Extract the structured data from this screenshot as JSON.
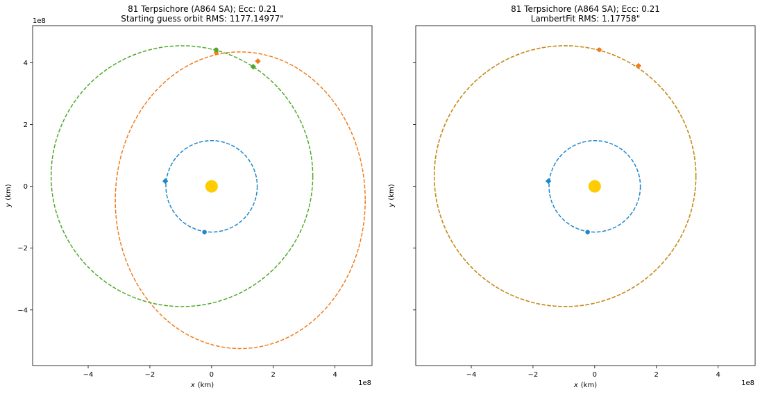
{
  "chart_data": [
    {
      "type": "scatter",
      "title_line1": "81 Terpsichore (A864 SA); Ecc: 0.21",
      "title_line2": "Starting guess orbit RMS: 1177.14977\"",
      "xlabel": "x",
      "xlabel_unit": "(km)",
      "ylabel": "y",
      "ylabel_unit": "(km)",
      "x_offset_label": "1e8",
      "y_offset_label": "1e8",
      "xlim": [
        -5.8,
        5.2
      ],
      "ylim": [
        -5.8,
        5.2
      ],
      "x_ticks": [
        -4,
        -2,
        0,
        2,
        4
      ],
      "x_tick_labels": [
        "−4",
        "−2",
        "0",
        "2",
        "4"
      ],
      "y_ticks": [
        -4,
        -2,
        0,
        2,
        4
      ],
      "y_tick_labels": [
        "−4",
        "−2",
        "0",
        "2",
        "4"
      ],
      "show_y_tick_labels": true,
      "grid": false,
      "sun": {
        "x": 0,
        "y": 0,
        "color": "#ffcc00"
      },
      "orbits": [
        {
          "center": [
            0,
            0
          ],
          "a": 1.48,
          "b": 1.48,
          "color": "#1f86c8",
          "dash": "dashed"
        },
        {
          "center": [
            0.93,
            -0.45
          ],
          "a": 4.05,
          "b": 4.8,
          "color": "#f07d1d",
          "dash": "dashed"
        },
        {
          "center": [
            -0.96,
            0.33
          ],
          "a": 4.24,
          "b": 4.22,
          "color": "#4fa82a",
          "dash": "dashed"
        }
      ],
      "markers": [
        {
          "x": -1.5,
          "y": 0.17,
          "shape": "diamond",
          "color": "#1f86c8"
        },
        {
          "x": -0.23,
          "y": -1.48,
          "shape": "circle",
          "color": "#1f86c8"
        },
        {
          "x": 0.15,
          "y": 4.33,
          "shape": "circle",
          "color": "#f07d1d"
        },
        {
          "x": 1.5,
          "y": 4.05,
          "shape": "diamond",
          "color": "#f07d1d"
        },
        {
          "x": 0.15,
          "y": 4.42,
          "shape": "circle",
          "color": "#4fa82a"
        },
        {
          "x": 1.35,
          "y": 3.87,
          "shape": "diamond",
          "color": "#4fa82a"
        }
      ]
    },
    {
      "type": "scatter",
      "title_line1": "81 Terpsichore (A864 SA); Ecc: 0.21",
      "title_line2": "LambertFit RMS: 1.17758\"",
      "xlabel": "x",
      "xlabel_unit": "(km)",
      "ylabel": "y",
      "ylabel_unit": "(km)",
      "x_offset_label": "1e8",
      "y_offset_label": "",
      "xlim": [
        -5.8,
        5.2
      ],
      "ylim": [
        -5.8,
        5.2
      ],
      "x_ticks": [
        -4,
        -2,
        0,
        2,
        4
      ],
      "x_tick_labels": [
        "−4",
        "−2",
        "0",
        "2",
        "4"
      ],
      "y_ticks": [
        -4,
        -2,
        0,
        2,
        4
      ],
      "y_tick_labels": [],
      "show_y_tick_labels": false,
      "grid": false,
      "sun": {
        "x": 0,
        "y": 0,
        "color": "#ffcc00"
      },
      "orbits": [
        {
          "center": [
            0,
            0
          ],
          "a": 1.48,
          "b": 1.48,
          "color": "#1f86c8",
          "dash": "dashed"
        },
        {
          "center": [
            -0.96,
            0.33
          ],
          "a": 4.24,
          "b": 4.22,
          "color": "#4fa82a",
          "dash": "dashed"
        },
        {
          "center": [
            -0.96,
            0.33
          ],
          "a": 4.24,
          "b": 4.22,
          "color": "#d48a1b",
          "dash": "dashed"
        }
      ],
      "markers": [
        {
          "x": -1.5,
          "y": 0.17,
          "shape": "diamond",
          "color": "#1f86c8"
        },
        {
          "x": -0.23,
          "y": -1.48,
          "shape": "circle",
          "color": "#1f86c8"
        },
        {
          "x": 0.15,
          "y": 4.42,
          "shape": "circle",
          "color": "#f07d1d"
        },
        {
          "x": 1.42,
          "y": 3.9,
          "shape": "diamond",
          "color": "#f07d1d"
        }
      ]
    }
  ]
}
